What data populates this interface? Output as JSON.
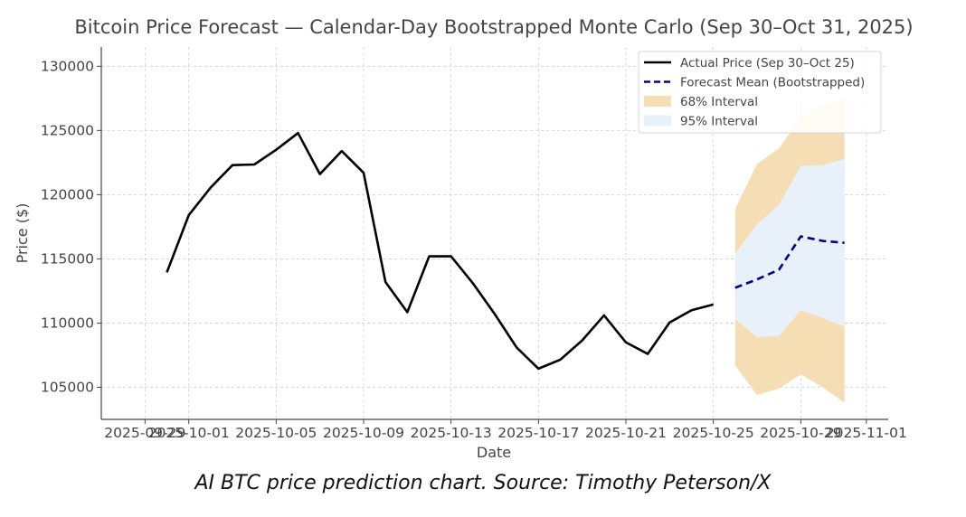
{
  "chart_data": {
    "type": "line",
    "title": "Bitcoin Price Forecast — Calendar-Day Bootstrapped Monte Carlo (Sep 30–Oct 31, 2025)",
    "xlabel": "Date",
    "ylabel": "Price ($)",
    "xlim": [
      "2025-09-27",
      "2025-11-02"
    ],
    "ylim": [
      102500,
      131500
    ],
    "grid": true,
    "legend_position": "top-right",
    "x_ticks": [
      "2025-09-29",
      "2025-10-01",
      "2025-10-05",
      "2025-10-09",
      "2025-10-13",
      "2025-10-17",
      "2025-10-21",
      "2025-10-25",
      "2025-10-29",
      "2025-11-01"
    ],
    "y_ticks": [
      105000,
      110000,
      115000,
      120000,
      125000,
      130000
    ],
    "series": [
      {
        "name": "Actual Price (Sep 30–Oct 25)",
        "style": "solid",
        "color": "#000000",
        "x": [
          "2025-09-30",
          "2025-10-01",
          "2025-10-02",
          "2025-10-03",
          "2025-10-04",
          "2025-10-05",
          "2025-10-06",
          "2025-10-07",
          "2025-10-08",
          "2025-10-09",
          "2025-10-10",
          "2025-10-11",
          "2025-10-12",
          "2025-10-13",
          "2025-10-14",
          "2025-10-15",
          "2025-10-16",
          "2025-10-17",
          "2025-10-18",
          "2025-10-19",
          "2025-10-20",
          "2025-10-21",
          "2025-10-22",
          "2025-10-23",
          "2025-10-24",
          "2025-10-25"
        ],
        "y": [
          113950,
          118400,
          120550,
          122300,
          122350,
          123500,
          124800,
          121600,
          123400,
          121700,
          113200,
          110850,
          115200,
          115200,
          113100,
          110700,
          108100,
          106450,
          107150,
          108650,
          110600,
          108500,
          107600,
          110050,
          111000,
          111450
        ]
      },
      {
        "name": "Forecast Mean (Bootstrapped)",
        "style": "dashed",
        "color": "#00008b",
        "x": [
          "2025-10-26",
          "2025-10-27",
          "2025-10-28",
          "2025-10-29",
          "2025-10-30",
          "2025-10-31"
        ],
        "y": [
          112750,
          113400,
          114150,
          116750,
          116400,
          116250
        ]
      }
    ],
    "bands": [
      {
        "name": "68% Interval",
        "color": "#f5deb3",
        "x": [
          "2025-10-26",
          "2025-10-27",
          "2025-10-28",
          "2025-10-29",
          "2025-10-30",
          "2025-10-31"
        ],
        "upper": [
          118900,
          122400,
          123600,
          126000,
          126900,
          127500
        ],
        "lower": [
          106700,
          104400,
          104900,
          106000,
          105000,
          103800
        ]
      },
      {
        "name": "95% Interval",
        "color": "#e8f0fa",
        "x": [
          "2025-10-26",
          "2025-10-27",
          "2025-10-28",
          "2025-10-29",
          "2025-10-30",
          "2025-10-31"
        ],
        "upper": [
          115400,
          117700,
          119200,
          122250,
          122300,
          122800
        ],
        "lower": [
          110300,
          108900,
          109000,
          111000,
          110400,
          109700
        ]
      }
    ]
  },
  "caption": "AI BTC price prediction chart. Source: Timothy Peterson/X"
}
